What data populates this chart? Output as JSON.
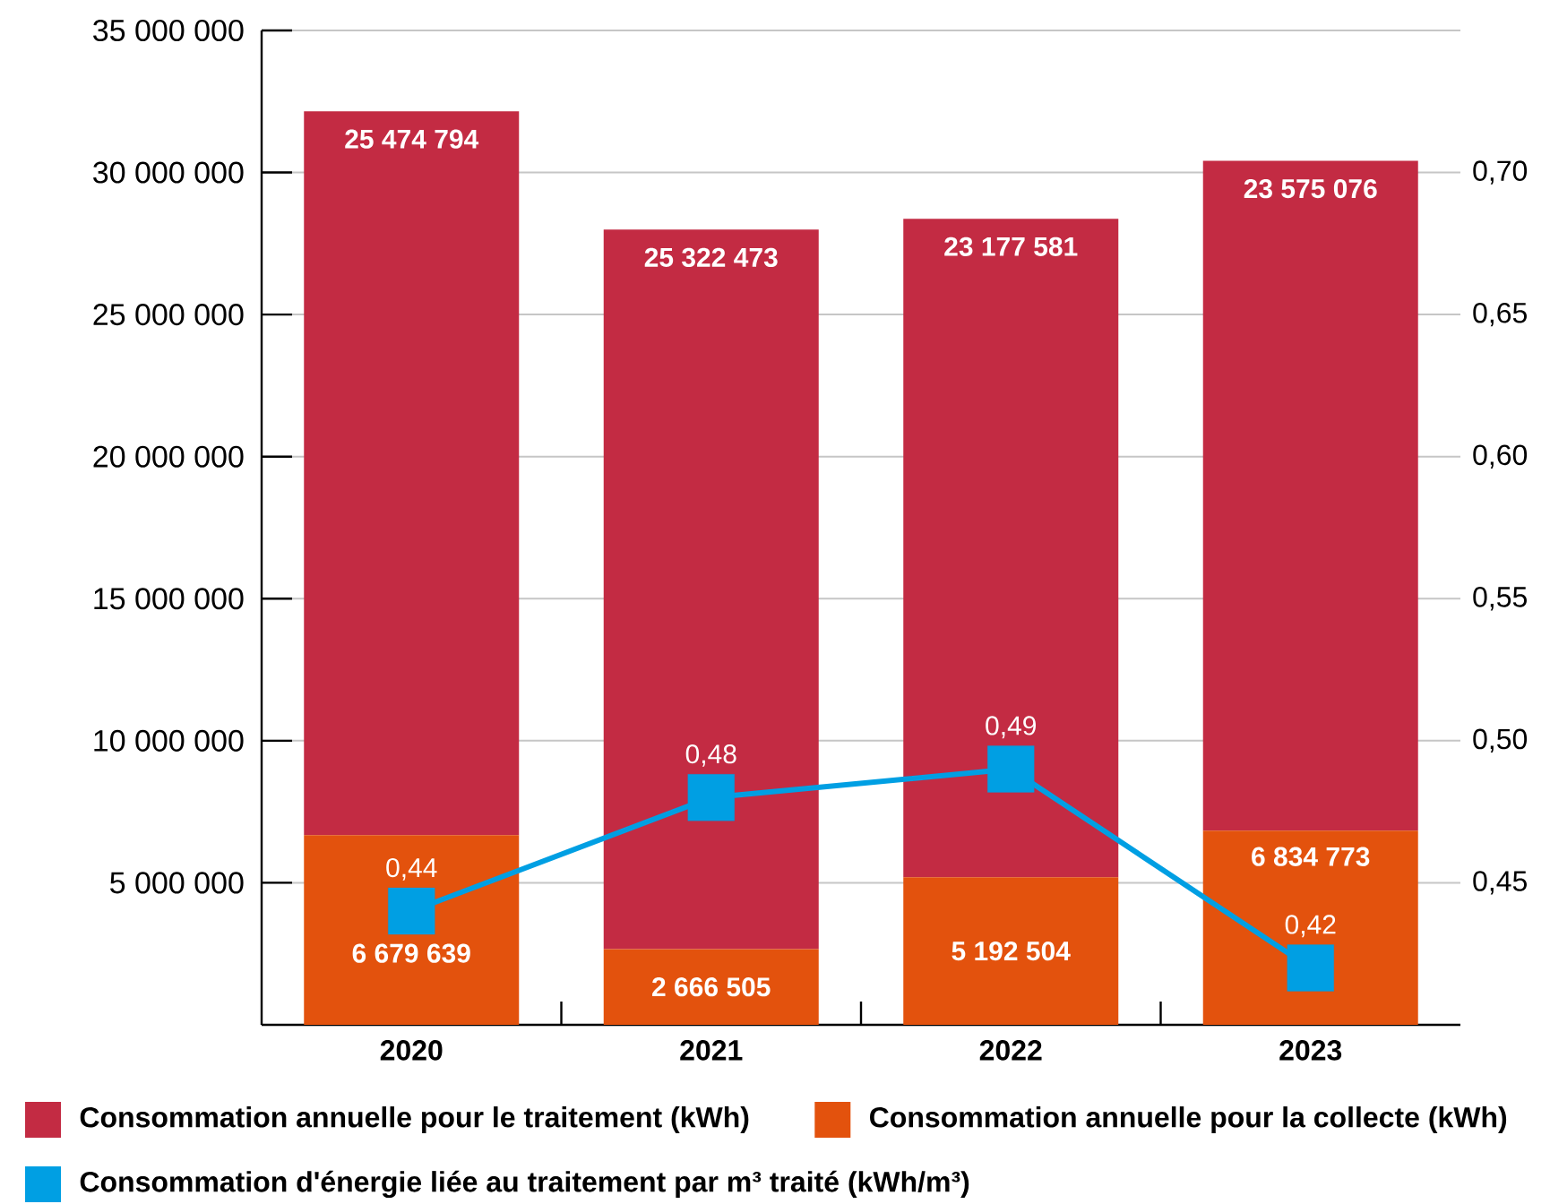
{
  "chart_data": {
    "type": "bar",
    "stacked": true,
    "categories": [
      "2020",
      "2021",
      "2022",
      "2023"
    ],
    "series": [
      {
        "name": "Consommation annuelle pour la collecte (kWh)",
        "color": "#e3520d",
        "values": [
          6679639,
          2666505,
          5192504,
          6834773
        ],
        "value_labels": [
          "6 679 639",
          "2 666 505",
          "5 192 504",
          "6 834 773"
        ]
      },
      {
        "name": "Consommation annuelle pour le traitement (kWh)",
        "color": "#c32b43",
        "values": [
          25474794,
          25322473,
          23177581,
          23575076
        ],
        "value_labels": [
          "25 474 794",
          "25 322 473",
          "23 177 581",
          "23 575 076"
        ]
      },
      {
        "name": "Consommation d'énergie liée au traitement par m³ traité (kWh/m³)",
        "type": "line",
        "axis": "y2",
        "marker": "square",
        "color": "#009fe3",
        "values": [
          0.44,
          0.48,
          0.49,
          0.42
        ],
        "value_labels": [
          "0,44",
          "0,48",
          "0,49",
          "0,42"
        ]
      }
    ],
    "ylim": [
      0,
      35000000
    ],
    "yticks": [
      {
        "value": 5000000,
        "label": "5 000 000"
      },
      {
        "value": 10000000,
        "label": "10 000 000"
      },
      {
        "value": 15000000,
        "label": "15 000 000"
      },
      {
        "value": 20000000,
        "label": "20 000 000"
      },
      {
        "value": 25000000,
        "label": "25 000 000"
      },
      {
        "value": 30000000,
        "label": "30 000 000"
      },
      {
        "value": 35000000,
        "label": "35 000 000"
      }
    ],
    "y2lim": [
      0.4,
      0.75
    ],
    "y2ticks": [
      {
        "value": 0.45,
        "label": "0,45"
      },
      {
        "value": 0.5,
        "label": "0,50"
      },
      {
        "value": 0.55,
        "label": "0,55"
      },
      {
        "value": 0.6,
        "label": "0,60"
      },
      {
        "value": 0.65,
        "label": "0,65"
      },
      {
        "value": 0.7,
        "label": "0,70"
      }
    ],
    "grid": "y",
    "legend": "bottom"
  }
}
